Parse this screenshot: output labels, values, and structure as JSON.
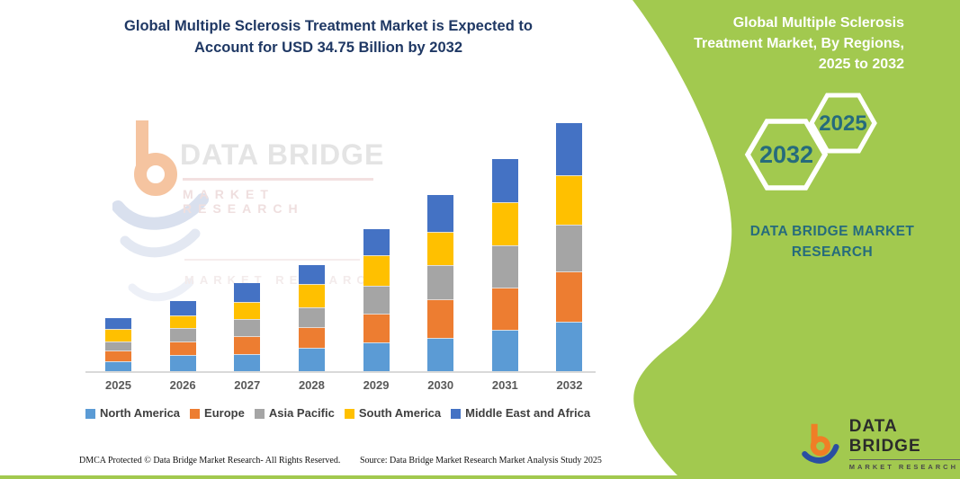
{
  "page": {
    "accent_green": "#a2c94f",
    "teal": "#266b7c",
    "navy": "#1F3864"
  },
  "chart": {
    "title_line1": "Global Multiple Sclerosis Treatment Market is Expected to",
    "title_line2": "Account for USD 34.75 Billion by 2032"
  },
  "chart_data": {
    "type": "bar",
    "stacked": true,
    "title": "Global Multiple Sclerosis Treatment Market is Expected to Account for USD 34.75 Billion by 2032",
    "unit": "USD Billion",
    "categories": [
      "2025",
      "2026",
      "2027",
      "2028",
      "2029",
      "2030",
      "2031",
      "2032"
    ],
    "series": [
      {
        "name": "North America",
        "color": "#5B9BD5",
        "values": [
          1.51,
          2.38,
          2.51,
          3.39,
          4.14,
          4.77,
          5.9,
          7.03
        ]
      },
      {
        "name": "Europe",
        "color": "#ED7D31",
        "values": [
          1.51,
          1.88,
          2.51,
          2.89,
          4.01,
          5.39,
          5.9,
          7.03
        ]
      },
      {
        "name": "Asia Pacific",
        "color": "#A5A5A5",
        "values": [
          1.25,
          1.88,
          2.38,
          2.76,
          3.89,
          4.77,
          5.9,
          6.52
        ]
      },
      {
        "name": "South America",
        "color": "#FFC000",
        "values": [
          1.76,
          1.76,
          2.38,
          3.26,
          4.27,
          4.64,
          6.02,
          6.9
        ]
      },
      {
        "name": "Middle East and Africa",
        "color": "#4472C4",
        "values": [
          1.51,
          2.01,
          2.63,
          2.63,
          3.64,
          5.14,
          6.02,
          7.27
        ]
      }
    ],
    "totals": [
      7.54,
      9.91,
      12.41,
      14.93,
      19.95,
      24.71,
      29.74,
      34.75
    ],
    "ylim": [
      0,
      36
    ],
    "grid": false,
    "legend_position": "bottom"
  },
  "watermark": {
    "line1": "DATA BRIDGE",
    "line2": "MARKET RESEARCH"
  },
  "panel": {
    "title_line1": "Global Multiple Sclerosis",
    "title_line2": "Treatment Market, By Regions,",
    "title_line3": "2025 to 2032",
    "hex_front_label": "2032",
    "hex_back_label": "2025",
    "brand_line1": "DATA BRIDGE MARKET",
    "brand_line2": "RESEARCH"
  },
  "logo": {
    "name": "DATA BRIDGE",
    "sub": "MARKET RESEARCH"
  },
  "footer": {
    "left": "DMCA Protected © Data Bridge Market Research-  All Rights Reserved.",
    "source": "Source: Data Bridge Market Research  Market Analysis Study 2025"
  }
}
